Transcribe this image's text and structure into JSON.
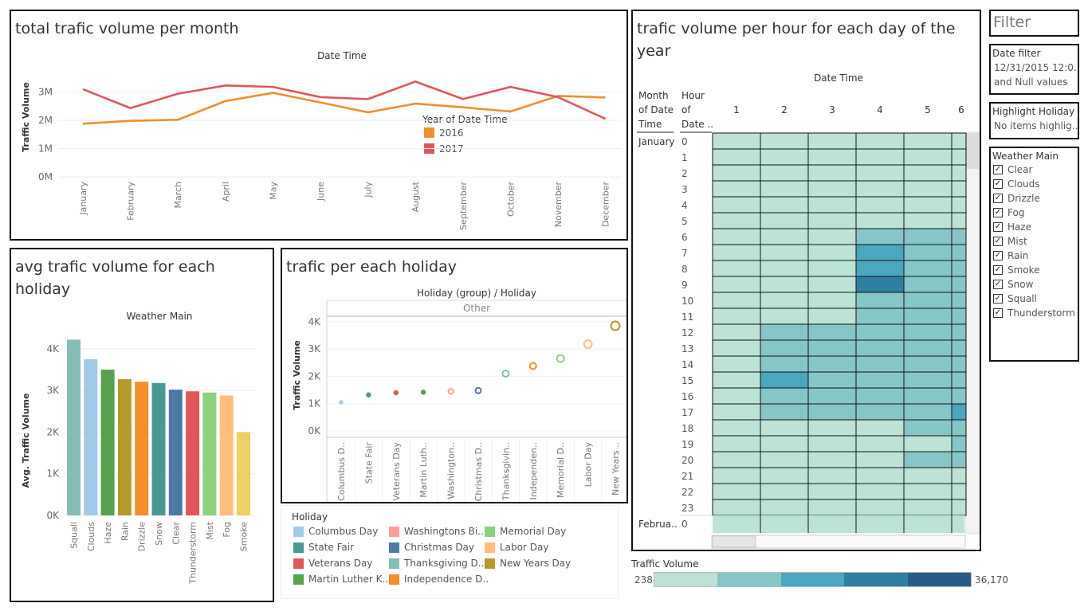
{
  "colors": {
    "y2016": "#f28e2b",
    "y2017": "#e15759",
    "heat": [
      "#bde3d7",
      "#86c6c9",
      "#4aa7bd",
      "#2f7fa2",
      "#2a5c8a"
    ]
  },
  "panel_monthly": {
    "title": "total trafic volume per month",
    "header": "Date Time",
    "legend_title": "Year of Date Time",
    "chart_data": {
      "type": "line",
      "categories": [
        "January",
        "February",
        "March",
        "April",
        "May",
        "June",
        "July",
        "August",
        "September",
        "October",
        "November",
        "December"
      ],
      "series": [
        {
          "name": "2016",
          "values": [
            1.88,
            1.98,
            2.02,
            2.68,
            2.97,
            2.63,
            2.28,
            2.59,
            2.46,
            2.31,
            2.86,
            2.81
          ]
        },
        {
          "name": "2017",
          "values": [
            3.1,
            2.43,
            2.94,
            3.23,
            3.18,
            2.82,
            2.75,
            3.37,
            2.75,
            3.18,
            2.82,
            2.05
          ]
        }
      ],
      "ylabel": "Traffic Volume",
      "ytick_labels": [
        "0M",
        "1M",
        "2M",
        "3M"
      ],
      "ylim": [
        0,
        3.55
      ]
    }
  },
  "panel_weather": {
    "title": "avg trafic volume for each holiday",
    "header": "Weather Main",
    "chart_data": {
      "type": "bar",
      "categories": [
        "Squall",
        "Clouds",
        "Haze",
        "Rain",
        "Drizzle",
        "Snow",
        "Clear",
        "Thunderstorm",
        "Mist",
        "Fog",
        "Smoke"
      ],
      "values": [
        4220,
        3750,
        3500,
        3270,
        3210,
        3180,
        3020,
        2980,
        2950,
        2880,
        2000
      ],
      "colors": [
        "#86bcb6",
        "#a0cbe8",
        "#59a14f",
        "#b6992d",
        "#f28e2b",
        "#499894",
        "#4e79a7",
        "#e15759",
        "#8cd17d",
        "#ffbe7d",
        "#f1ce63"
      ],
      "ylabel": "Avg. Traffic Volume",
      "ytick_labels": [
        "0K",
        "1K",
        "2K",
        "3K",
        "4K"
      ],
      "ylim": [
        0,
        4400
      ]
    }
  },
  "panel_holiday": {
    "title": "trafic per each holiday",
    "header": "Holiday (group)  /  Holiday",
    "group_label": "Other",
    "chart_data": {
      "type": "scatter",
      "categories": [
        "Columbus D..",
        "State Fair",
        "Veterans Day",
        "Martin Luth..",
        "Washington..",
        "Christmas D..",
        "Thanksgivin..",
        "Independen..",
        "Memorial D..",
        "Labor Day",
        "New Years .."
      ],
      "values": [
        1050,
        1320,
        1400,
        1420,
        1450,
        1480,
        2100,
        2380,
        2650,
        3180,
        3850
      ],
      "sizes": [
        2,
        2.5,
        2.5,
        2.5,
        3,
        3.5,
        4,
        4,
        4.5,
        5,
        5.5
      ],
      "colors": [
        "#a0cbe8",
        "#499894",
        "#e15759",
        "#59a14f",
        "#ff9d9a",
        "#4e79a7",
        "#86bcb6",
        "#f28e2b",
        "#8cd17d",
        "#ffbe7d",
        "#b6992d"
      ],
      "ylabel": "Traffic Volume",
      "ytick_labels": [
        "0K",
        "1K",
        "2K",
        "3K",
        "4K"
      ],
      "ylim": [
        0,
        4200
      ]
    }
  },
  "holiday_legend": {
    "title": "Holiday",
    "items": [
      {
        "label": "Columbus Day",
        "color": "#a0cbe8"
      },
      {
        "label": "State Fair",
        "color": "#499894"
      },
      {
        "label": "Veterans Day",
        "color": "#e15759"
      },
      {
        "label": "Martin Luther K..",
        "color": "#59a14f"
      },
      {
        "label": "Washingtons Bi..",
        "color": "#ff9d9a"
      },
      {
        "label": "Christmas Day",
        "color": "#4e79a7"
      },
      {
        "label": "Thanksgiving D..",
        "color": "#86bcb6"
      },
      {
        "label": "Independence D..",
        "color": "#f28e2b"
      },
      {
        "label": "Memorial Day",
        "color": "#8cd17d"
      },
      {
        "label": "Labor Day",
        "color": "#ffbe7d"
      },
      {
        "label": "New Years Day",
        "color": "#b6992d"
      }
    ]
  },
  "panel_heatmap": {
    "title_line1": "trafic volume per hour for each day of the",
    "title_line2": "year",
    "header": "Date Time",
    "row_header_1": [
      "Month",
      "of Date",
      "Time"
    ],
    "row_header_2": [
      "Hour",
      "of",
      "Date .."
    ],
    "month_label": "January",
    "next_month_label": "Februa..",
    "next_month_hour": "0",
    "chart_data": {
      "type": "heatmap",
      "columns": [
        "1",
        "2",
        "3",
        "4",
        "5",
        "6"
      ],
      "rows": [
        "0",
        "1",
        "2",
        "3",
        "4",
        "5",
        "6",
        "7",
        "8",
        "9",
        "10",
        "11",
        "12",
        "13",
        "14",
        "15",
        "16",
        "17",
        "18",
        "19",
        "20",
        "21",
        "22",
        "23"
      ],
      "levels": [
        [
          0,
          0,
          0,
          0,
          0,
          0
        ],
        [
          0,
          0,
          0,
          0,
          0,
          0
        ],
        [
          0,
          0,
          0,
          0,
          0,
          0
        ],
        [
          0,
          0,
          0,
          0,
          0,
          0
        ],
        [
          0,
          0,
          0,
          0,
          0,
          0
        ],
        [
          0,
          0,
          0,
          0,
          0,
          0
        ],
        [
          0,
          0,
          0,
          1,
          1,
          1
        ],
        [
          0,
          0,
          0,
          2,
          1,
          1
        ],
        [
          0,
          0,
          0,
          2,
          1,
          1
        ],
        [
          0,
          0,
          0,
          3,
          1,
          1
        ],
        [
          0,
          0,
          0,
          1,
          1,
          1
        ],
        [
          0,
          0,
          0,
          1,
          1,
          1
        ],
        [
          0,
          1,
          1,
          1,
          1,
          1
        ],
        [
          0,
          1,
          1,
          1,
          1,
          1
        ],
        [
          0,
          1,
          1,
          1,
          1,
          1
        ],
        [
          0,
          2,
          1,
          1,
          1,
          1
        ],
        [
          0,
          1,
          1,
          1,
          1,
          1
        ],
        [
          0,
          1,
          1,
          1,
          1,
          2
        ],
        [
          0,
          0,
          0,
          0,
          1,
          1
        ],
        [
          0,
          0,
          0,
          0,
          0,
          1
        ],
        [
          0,
          0,
          0,
          0,
          1,
          1
        ],
        [
          0,
          0,
          0,
          0,
          0,
          0
        ],
        [
          0,
          0,
          0,
          0,
          0,
          0
        ],
        [
          0,
          0,
          0,
          0,
          0,
          0
        ]
      ]
    }
  },
  "sidebar": {
    "filter_heading": "Filter",
    "date_filter": {
      "title": "Date filter",
      "line1": "12/31/2015 12:0..",
      "line2": "and Null values"
    },
    "highlight": {
      "title": "Highlight Holiday",
      "placeholder": "No items highlig.."
    },
    "weather": {
      "title": "Weather Main",
      "items": [
        "Clear",
        "Clouds",
        "Drizzle",
        "Fog",
        "Haze",
        "Mist",
        "Rain",
        "Smoke",
        "Snow",
        "Squall",
        "Thunderstorm"
      ]
    }
  },
  "color_legend": {
    "title": "Traffic Volume",
    "min": "238",
    "max": "36,170"
  }
}
